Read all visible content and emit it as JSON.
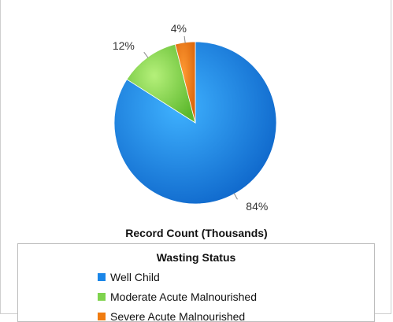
{
  "chart_data": {
    "type": "pie",
    "title": "Record Count (Thousands)",
    "slices": [
      {
        "name": "Well Child",
        "value": 84,
        "label": "84%",
        "color": "#1a86e8"
      },
      {
        "name": "Moderate Acute Malnourished",
        "value": 12,
        "label": "12%",
        "color": "#7fd34e"
      },
      {
        "name": "Severe Acute Malnourished",
        "value": 4,
        "label": "4%",
        "color": "#f07c10"
      }
    ],
    "legend": {
      "title": "Wasting Status",
      "placement": "bottom"
    }
  }
}
